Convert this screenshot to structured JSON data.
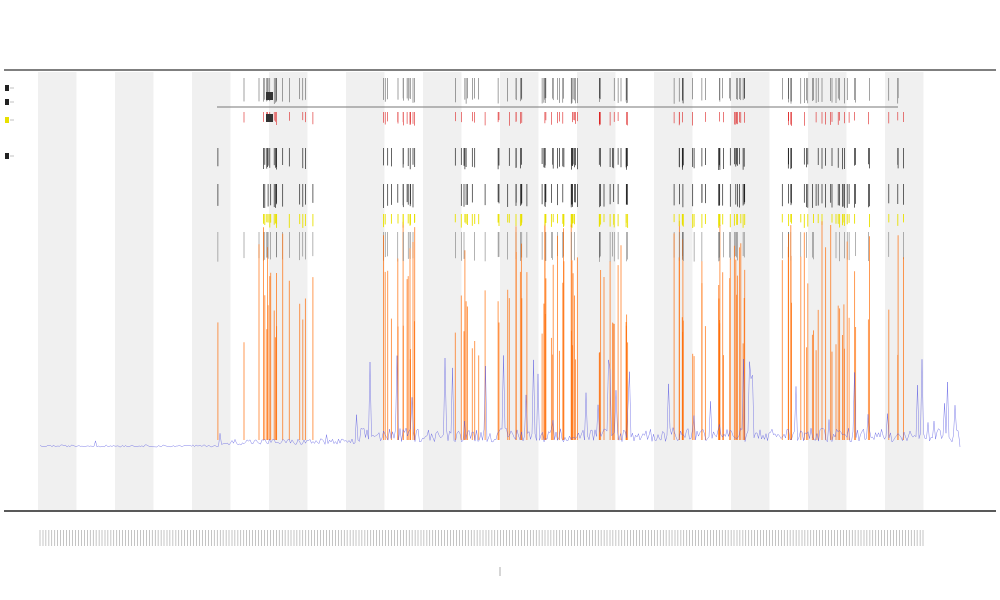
{
  "chart_data": {
    "type": "line",
    "title": "",
    "subtitle_lines": [
      "",
      ""
    ],
    "xlabel": "",
    "ylabel": "",
    "xlim": [
      0,
      1000
    ],
    "grid": false,
    "alternating_column_shading": true,
    "shaded_band_count": 12,
    "legend_placement": "left",
    "legend_entries": [
      "",
      "",
      "",
      ""
    ],
    "baseline_series": {
      "name": "",
      "color": "#4a4ae0",
      "segments": [
        {
          "x": [
            0,
            200
          ],
          "y_level": 0.02
        },
        {
          "x": [
            200,
            350
          ],
          "y_level": 0.05
        },
        {
          "x": [
            350,
            1000
          ],
          "y_level": 0.07
        }
      ]
    },
    "marker_tracks": [
      {
        "name": "",
        "color": "#333333"
      },
      {
        "name": "",
        "color": "#dd2222"
      },
      {
        "name": "",
        "color": "#222222"
      },
      {
        "name": "",
        "color": "#222222"
      },
      {
        "name": "",
        "color": "#e8e000"
      },
      {
        "name": "",
        "color": "#ff6a00"
      }
    ],
    "tick_label_count": 300
  },
  "colors": {
    "axis": "#222222",
    "band": "#f0f0f0",
    "baseline": "#4a4ae0",
    "peak": "#ff6a00",
    "highlight": "#e8e000",
    "annotation_red": "#dd2222"
  }
}
